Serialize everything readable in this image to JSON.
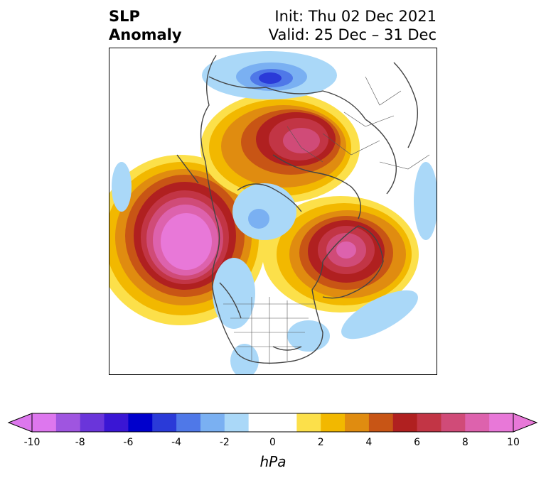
{
  "title": {
    "variable": "SLP",
    "kind": "Anomaly",
    "init": "Init: Thu 02 Dec 2021",
    "valid": "Valid: 25 Dec – 31 Dec"
  },
  "map": {
    "projection": "north-polar-stereographic",
    "field": "sea level pressure anomaly",
    "features": [
      {
        "name": "north-pacific-high",
        "peak": 10,
        "sign": "positive"
      },
      {
        "name": "scandinavia-russia-high",
        "peak": 8,
        "sign": "positive"
      },
      {
        "name": "greenland-labrador-high",
        "peak": 9,
        "sign": "positive"
      },
      {
        "name": "barents-low",
        "peak": -5,
        "sign": "negative"
      },
      {
        "name": "arctic-low",
        "peak": -3,
        "sign": "negative"
      },
      {
        "name": "atlantic-low",
        "peak": -2,
        "sign": "negative"
      },
      {
        "name": "western-us-low",
        "peak": -2,
        "sign": "negative"
      }
    ]
  },
  "colorbar": {
    "label": "hPa",
    "ticks": [
      "-10",
      "-8",
      "-6",
      "-4",
      "-2",
      "0",
      "2",
      "4",
      "6",
      "8",
      "10"
    ],
    "levels": [
      -10,
      -9,
      -8,
      -7,
      -6,
      -5,
      -4,
      -3,
      -2,
      -1,
      1,
      2,
      3,
      4,
      5,
      6,
      7,
      8,
      9,
      10
    ],
    "colors": [
      "#dd77ee",
      "#9f55e0",
      "#6a35da",
      "#3a16d4",
      "#0000cc",
      "#2a3ad8",
      "#4f78e8",
      "#7ab0f2",
      "#aad8f8",
      "#ffffff",
      "#fce04a",
      "#f2b800",
      "#e08c10",
      "#c85515",
      "#b02020",
      "#c23545",
      "#d04b78",
      "#dd62ad",
      "#e878d8"
    ],
    "under_color": "#dd77ee",
    "over_color": "#e878d8"
  }
}
